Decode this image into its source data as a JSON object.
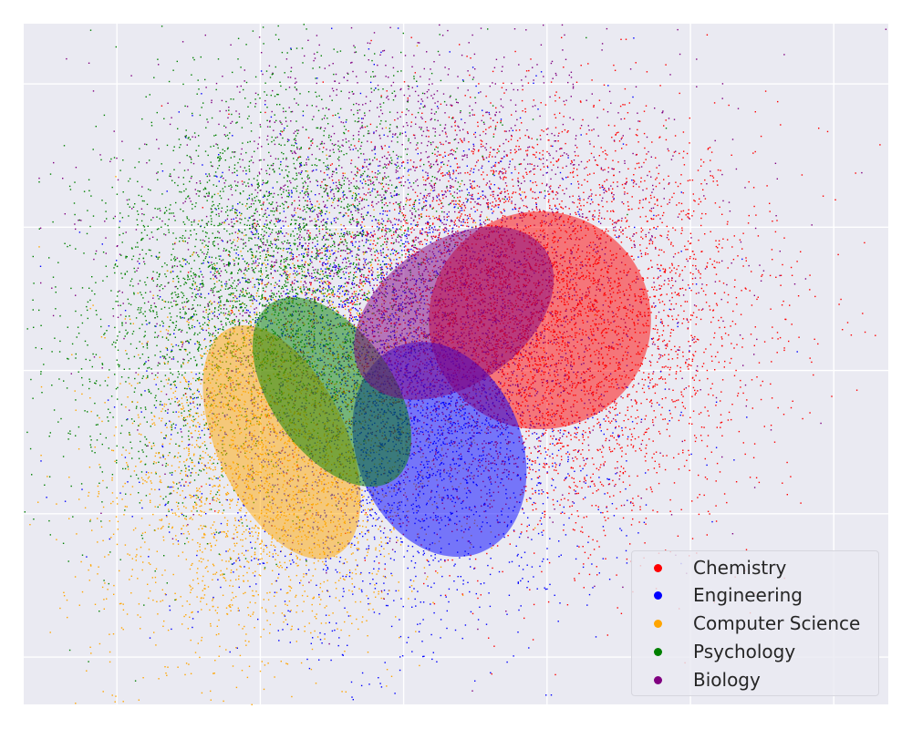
{
  "chart_data": {
    "type": "scatter",
    "title": "",
    "xlabel": "",
    "ylabel": "",
    "xlim": [
      -2.65,
      3.38
    ],
    "ylim": [
      -2.33,
      2.42
    ],
    "grid": true,
    "ticks_visible": false,
    "x_gridlines": [
      -2,
      -1,
      0,
      1,
      2,
      3
    ],
    "y_gridlines": [
      -2,
      -1,
      0,
      1,
      2
    ],
    "legend_position": "lower right",
    "background_color": "#eaeaf2",
    "series": [
      {
        "name": "Chemistry",
        "color": "#ff0000",
        "points": 5200,
        "center": [
          0.9,
          0.35
        ],
        "spread": [
          0.75,
          0.72
        ],
        "rotation_deg": 0,
        "ellipse": {
          "center": [
            0.95,
            0.35
          ],
          "width": 1.55,
          "height": 1.52,
          "angle_deg": 0
        }
      },
      {
        "name": "Engineering",
        "color": "#0000ff",
        "points": 4200,
        "center": [
          0.0,
          -0.15
        ],
        "spread": [
          0.72,
          0.78
        ],
        "rotation_deg": -25,
        "ellipse": {
          "center": [
            0.25,
            -0.55
          ],
          "width": 1.15,
          "height": 1.55,
          "angle_deg": -22
        }
      },
      {
        "name": "Computer Science",
        "color": "#ffa500",
        "points": 3600,
        "center": [
          -0.8,
          -0.55
        ],
        "spread": [
          0.55,
          0.75
        ],
        "rotation_deg": -30,
        "ellipse": {
          "center": [
            -0.85,
            -0.5
          ],
          "width": 0.9,
          "height": 1.75,
          "angle_deg": -25
        }
      },
      {
        "name": "Psychology",
        "color": "#008000",
        "points": 3600,
        "center": [
          -1.05,
          0.6
        ],
        "spread": [
          0.55,
          0.8
        ],
        "rotation_deg": -35,
        "ellipse": {
          "center": [
            -0.5,
            -0.15
          ],
          "width": 0.85,
          "height": 1.5,
          "angle_deg": -35
        }
      },
      {
        "name": "Biology",
        "color": "#800080",
        "points": 3600,
        "center": [
          0.1,
          0.75
        ],
        "spread": [
          0.9,
          0.75
        ],
        "rotation_deg": 0,
        "ellipse": {
          "center": [
            0.35,
            0.4
          ],
          "width": 1.55,
          "height": 1.0,
          "angle_deg": -35
        }
      }
    ]
  },
  "legend": {
    "items": [
      {
        "label": "Chemistry",
        "color": "#ff0000"
      },
      {
        "label": "Engineering",
        "color": "#0000ff"
      },
      {
        "label": "Computer Science",
        "color": "#ffa500"
      },
      {
        "label": "Psychology",
        "color": "#008000"
      },
      {
        "label": "Biology",
        "color": "#800080"
      }
    ]
  }
}
